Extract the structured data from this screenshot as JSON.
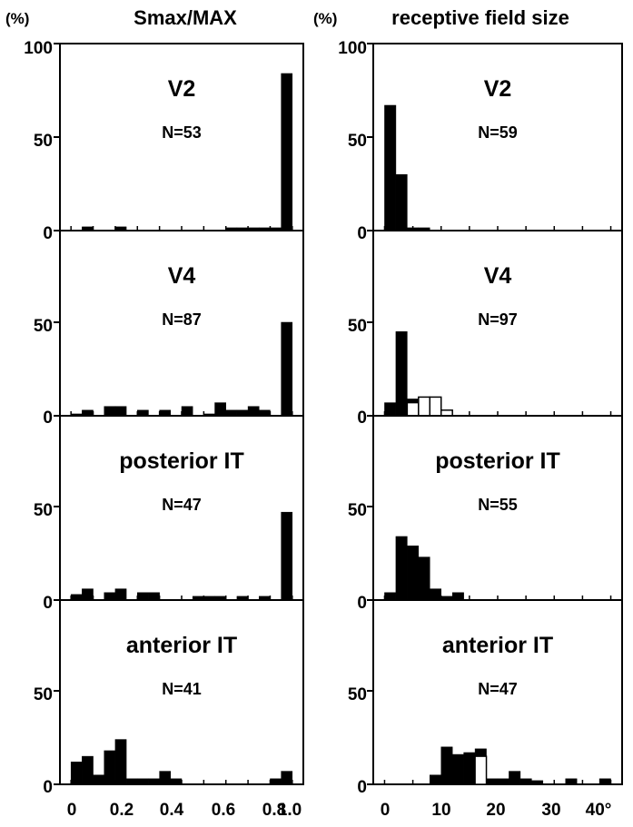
{
  "figure": {
    "columns": [
      {
        "title": "Smax/MAX",
        "unit": "(%)",
        "xticks": [
          "0",
          "0.2",
          "0.4",
          "0.6",
          "0.8",
          "1.0"
        ]
      },
      {
        "title": "receptive field size",
        "unit": "(%)",
        "xticks": [
          "0",
          "10",
          "20",
          "30",
          "40°"
        ]
      }
    ],
    "yticks_top": [
      "100",
      "50",
      "0"
    ],
    "yticks": [
      "50",
      "0"
    ]
  },
  "chart_data": [
    {
      "type": "bar",
      "title": "V2",
      "subtitle": "N=53",
      "ylabel": "(%)",
      "xlabel": "Smax/MAX",
      "ylim": [
        0,
        100
      ],
      "xlim": [
        -0.05,
        1.05
      ],
      "bin_width": 0.05,
      "series": [
        {
          "x": [
            0.05,
            0.2,
            0.7,
            0.75,
            0.8,
            0.85,
            0.9,
            0.95
          ],
          "values": [
            2,
            2,
            1.5,
            1.5,
            1.5,
            1.5,
            1.5,
            84
          ]
        }
      ]
    },
    {
      "type": "bar",
      "title": "V2",
      "subtitle": "N=59",
      "ylabel": "(%)",
      "xlabel": "receptive field size",
      "ylim": [
        0,
        100
      ],
      "xlim": [
        -2,
        42
      ],
      "bin_width": 2,
      "series": [
        {
          "x": [
            0,
            2,
            4,
            6
          ],
          "values": [
            67,
            30,
            1.5,
            1.5
          ]
        }
      ]
    },
    {
      "type": "bar",
      "title": "V4",
      "subtitle": "N=87",
      "ylabel": "(%)",
      "xlabel": "Smax/MAX",
      "ylim": [
        0,
        100
      ],
      "xlim": [
        -0.05,
        1.05
      ],
      "bin_width": 0.05,
      "series": [
        {
          "x": [
            0,
            0.05,
            0.15,
            0.2,
            0.3,
            0.4,
            0.5,
            0.6,
            0.65,
            0.7,
            0.75,
            0.8,
            0.85,
            0.95
          ],
          "values": [
            1,
            3,
            5,
            5,
            3,
            3,
            5,
            1,
            7,
            3,
            3,
            5,
            3,
            50
          ]
        }
      ]
    },
    {
      "type": "bar",
      "title": "V4",
      "subtitle": "N=97",
      "ylabel": "(%)",
      "xlabel": "receptive field size",
      "ylim": [
        0,
        100
      ],
      "xlim": [
        -2,
        42
      ],
      "bin_width": 2,
      "series": [
        {
          "fill": "black",
          "x": [
            0,
            2,
            4,
            6
          ],
          "values": [
            7,
            45,
            9,
            8
          ]
        },
        {
          "fill": "open",
          "x": [
            4,
            6,
            8,
            10
          ],
          "values": [
            7,
            10,
            10,
            3
          ]
        }
      ]
    },
    {
      "type": "bar",
      "title": "posterior IT",
      "subtitle": "N=47",
      "ylabel": "(%)",
      "xlabel": "Smax/MAX",
      "ylim": [
        0,
        100
      ],
      "xlim": [
        -0.05,
        1.05
      ],
      "bin_width": 0.05,
      "series": [
        {
          "x": [
            0,
            0.05,
            0.15,
            0.2,
            0.3,
            0.35,
            0.55,
            0.6,
            0.65,
            0.75,
            0.85,
            0.95
          ],
          "values": [
            3,
            6,
            4,
            6,
            4,
            4,
            2,
            2,
            2,
            2,
            2,
            47
          ]
        }
      ]
    },
    {
      "type": "bar",
      "title": "posterior IT",
      "subtitle": "N=55",
      "ylabel": "(%)",
      "xlabel": "receptive field size",
      "ylim": [
        0,
        100
      ],
      "xlim": [
        -2,
        42
      ],
      "bin_width": 2,
      "series": [
        {
          "x": [
            0,
            2,
            4,
            6,
            8,
            10,
            12
          ],
          "values": [
            4,
            34,
            29,
            23,
            6,
            2,
            4
          ]
        }
      ]
    },
    {
      "type": "bar",
      "title": "anterior IT",
      "subtitle": "N=41",
      "ylabel": "(%)",
      "xlabel": "Smax/MAX",
      "ylim": [
        0,
        100
      ],
      "xlim": [
        -0.05,
        1.05
      ],
      "bin_width": 0.05,
      "series": [
        {
          "x": [
            0,
            0.05,
            0.1,
            0.15,
            0.2,
            0.25,
            0.3,
            0.35,
            0.4,
            0.45,
            0.9,
            0.95
          ],
          "values": [
            12,
            15,
            5,
            18,
            24,
            3,
            3,
            3,
            7,
            3,
            3,
            7
          ]
        }
      ]
    },
    {
      "type": "bar",
      "title": "anterior IT",
      "subtitle": "N=47",
      "ylabel": "(%)",
      "xlabel": "receptive field size",
      "ylim": [
        0,
        100
      ],
      "xlim": [
        -2,
        42
      ],
      "bin_width": 2,
      "series": [
        {
          "fill": "black",
          "x": [
            8,
            10,
            12,
            14,
            16,
            18,
            20,
            22,
            24,
            26,
            32,
            38
          ],
          "values": [
            5,
            20,
            16,
            17,
            19,
            3,
            3,
            7,
            3,
            2,
            3,
            3
          ]
        },
        {
          "fill": "open",
          "x": [
            16
          ],
          "values": [
            15
          ]
        }
      ]
    }
  ]
}
